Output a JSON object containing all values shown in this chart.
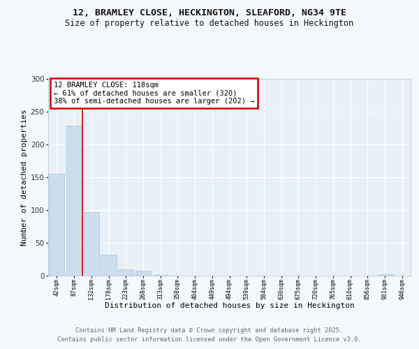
{
  "title_line1": "12, BRAMLEY CLOSE, HECKINGTON, SLEAFORD, NG34 9TE",
  "title_line2": "Size of property relative to detached houses in Heckington",
  "xlabel": "Distribution of detached houses by size in Heckington",
  "ylabel": "Number of detached properties",
  "annotation_line1": "12 BRAMLEY CLOSE: 118sqm",
  "annotation_line2": "← 61% of detached houses are smaller (320)",
  "annotation_line3": "38% of semi-detached houses are larger (202) →",
  "bar_labels": [
    "42sqm",
    "87sqm",
    "132sqm",
    "178sqm",
    "223sqm",
    "268sqm",
    "313sqm",
    "358sqm",
    "404sqm",
    "449sqm",
    "494sqm",
    "539sqm",
    "584sqm",
    "630sqm",
    "675sqm",
    "720sqm",
    "765sqm",
    "810sqm",
    "856sqm",
    "901sqm",
    "946sqm"
  ],
  "bar_values": [
    155,
    228,
    97,
    32,
    10,
    7,
    1,
    0,
    0,
    0,
    0,
    0,
    0,
    0,
    0,
    0,
    0,
    0,
    0,
    2,
    0
  ],
  "bar_color": "#ccdded",
  "bar_edge_color": "#aac4d8",
  "vline_x": 1.5,
  "vline_color": "#cc0000",
  "ylim": [
    0,
    300
  ],
  "yticks": [
    0,
    50,
    100,
    150,
    200,
    250,
    300
  ],
  "background_color": "#f5f8fc",
  "plot_bg_color": "#e8f0f8",
  "grid_color": "#ffffff",
  "footer_line1": "Contains HM Land Registry data © Crown copyright and database right 2025.",
  "footer_line2": "Contains public sector information licensed under the Open Government Licence v3.0."
}
